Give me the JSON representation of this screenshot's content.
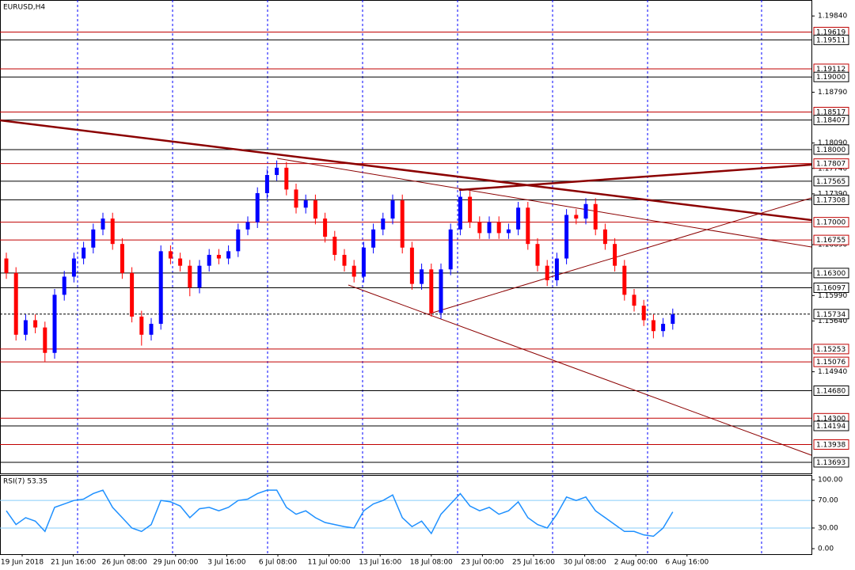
{
  "chart_data": {
    "type": "candlestick",
    "title": "EURUSD,H4",
    "ylim": [
      1.1354,
      1.2006
    ],
    "yticks": [
      {
        "value": 1.1984,
        "label": "1.19840"
      },
      {
        "value": 1.1879,
        "label": "1.18790"
      },
      {
        "value": 1.1809,
        "label": "1.18090"
      },
      {
        "value": 1.1774,
        "label": "1.17740"
      },
      {
        "value": 1.1739,
        "label": "1.17390"
      },
      {
        "value": 1.1669,
        "label": "1.16690"
      },
      {
        "value": 1.1599,
        "label": "1.15990"
      },
      {
        "value": 1.1564,
        "label": "1.15640"
      },
      {
        "value": 1.1494,
        "label": "1.14940"
      }
    ],
    "up_color": "#0000ff",
    "down_color": "#ff0000",
    "levels": [
      {
        "value": 1.19619,
        "label": "1.19619",
        "color": "#c00000"
      },
      {
        "value": 1.19511,
        "label": "1.19511",
        "color": "#000000"
      },
      {
        "value": 1.19112,
        "label": "1.19112",
        "color": "#c00000"
      },
      {
        "value": 1.19,
        "label": "1.19000",
        "color": "#000000"
      },
      {
        "value": 1.18517,
        "label": "1.18517",
        "color": "#c00000"
      },
      {
        "value": 1.18407,
        "label": "1.18407",
        "color": "#000000"
      },
      {
        "value": 1.18,
        "label": "1.18000",
        "color": "#000000"
      },
      {
        "value": 1.17807,
        "label": "1.17807",
        "color": "#c00000"
      },
      {
        "value": 1.17565,
        "label": "1.17565",
        "color": "#000000"
      },
      {
        "value": 1.17308,
        "label": "1.17308",
        "color": "#000000"
      },
      {
        "value": 1.17,
        "label": "1.17000",
        "color": "#c00000"
      },
      {
        "value": 1.16755,
        "label": "1.16755",
        "color": "#c00000"
      },
      {
        "value": 1.163,
        "label": "1.16300",
        "color": "#000000"
      },
      {
        "value": 1.16097,
        "label": "1.16097",
        "color": "#000000"
      },
      {
        "value": 1.15253,
        "label": "1.15253",
        "color": "#c00000"
      },
      {
        "value": 1.15076,
        "label": "1.15076",
        "color": "#c00000"
      },
      {
        "value": 1.1468,
        "label": "1.14680",
        "color": "#000000"
      },
      {
        "value": 1.143,
        "label": "1.14300",
        "color": "#c00000"
      },
      {
        "value": 1.14194,
        "label": "1.14194",
        "color": "#000000"
      },
      {
        "value": 1.13938,
        "label": "1.13938",
        "color": "#c00000"
      },
      {
        "value": 1.13693,
        "label": "1.13693",
        "color": "#000000"
      }
    ],
    "current_price": {
      "value": 1.15734,
      "label": "1.15734"
    },
    "candles": [
      [
        1.165,
        1.1658,
        1.1622,
        1.163
      ],
      [
        1.163,
        1.1638,
        1.1537,
        1.1545
      ],
      [
        1.1545,
        1.1573,
        1.1537,
        1.1565
      ],
      [
        1.1565,
        1.1573,
        1.1547,
        1.1555
      ],
      [
        1.1555,
        1.1563,
        1.1508,
        1.152
      ],
      [
        1.152,
        1.1608,
        1.1512,
        1.16
      ],
      [
        1.16,
        1.1633,
        1.1592,
        1.1625
      ],
      [
        1.1625,
        1.1658,
        1.1617,
        1.165
      ],
      [
        1.165,
        1.1673,
        1.1642,
        1.1665
      ],
      [
        1.1665,
        1.1698,
        1.1657,
        1.169
      ],
      [
        1.169,
        1.1713,
        1.1682,
        1.1705
      ],
      [
        1.1705,
        1.1713,
        1.1662,
        1.167
      ],
      [
        1.167,
        1.1678,
        1.1622,
        1.163
      ],
      [
        1.163,
        1.1638,
        1.1562,
        1.157
      ],
      [
        1.157,
        1.1578,
        1.153,
        1.1545
      ],
      [
        1.1545,
        1.1568,
        1.1537,
        1.156
      ],
      [
        1.156,
        1.1668,
        1.1552,
        1.166
      ],
      [
        1.166,
        1.1668,
        1.1642,
        1.165
      ],
      [
        1.165,
        1.1658,
        1.1632,
        1.164
      ],
      [
        1.164,
        1.1648,
        1.1598,
        1.161
      ],
      [
        1.161,
        1.1648,
        1.1602,
        1.164
      ],
      [
        1.164,
        1.1663,
        1.1632,
        1.1655
      ],
      [
        1.1655,
        1.1663,
        1.1642,
        1.165
      ],
      [
        1.165,
        1.1668,
        1.1642,
        1.166
      ],
      [
        1.166,
        1.1698,
        1.1652,
        1.169
      ],
      [
        1.169,
        1.1708,
        1.1682,
        1.17
      ],
      [
        1.17,
        1.1748,
        1.1692,
        1.174
      ],
      [
        1.174,
        1.1773,
        1.1732,
        1.1765
      ],
      [
        1.1765,
        1.1785,
        1.1757,
        1.1775
      ],
      [
        1.1775,
        1.1783,
        1.1737,
        1.1745
      ],
      [
        1.1745,
        1.1753,
        1.1712,
        1.172
      ],
      [
        1.172,
        1.1738,
        1.1712,
        1.173
      ],
      [
        1.173,
        1.1738,
        1.1697,
        1.1705
      ],
      [
        1.1705,
        1.1713,
        1.1672,
        1.168
      ],
      [
        1.168,
        1.1688,
        1.1647,
        1.1655
      ],
      [
        1.1655,
        1.1663,
        1.1632,
        1.164
      ],
      [
        1.164,
        1.1648,
        1.1617,
        1.1625
      ],
      [
        1.1625,
        1.1673,
        1.1617,
        1.1665
      ],
      [
        1.1665,
        1.1698,
        1.1657,
        1.169
      ],
      [
        1.169,
        1.1713,
        1.1682,
        1.1705
      ],
      [
        1.1705,
        1.1738,
        1.1697,
        1.173
      ],
      [
        1.173,
        1.1738,
        1.1657,
        1.1665
      ],
      [
        1.1665,
        1.1673,
        1.1607,
        1.1615
      ],
      [
        1.1615,
        1.1643,
        1.1607,
        1.1635
      ],
      [
        1.1635,
        1.1643,
        1.157,
        1.1575
      ],
      [
        1.1575,
        1.1643,
        1.1567,
        1.1635
      ],
      [
        1.1635,
        1.1698,
        1.1627,
        1.169
      ],
      [
        1.169,
        1.1743,
        1.1682,
        1.1735
      ],
      [
        1.1735,
        1.1743,
        1.1692,
        1.17
      ],
      [
        1.17,
        1.1708,
        1.1677,
        1.1685
      ],
      [
        1.1685,
        1.1708,
        1.1677,
        1.17
      ],
      [
        1.17,
        1.1708,
        1.1677,
        1.1685
      ],
      [
        1.1685,
        1.1698,
        1.1677,
        1.169
      ],
      [
        1.169,
        1.1728,
        1.1682,
        1.172
      ],
      [
        1.172,
        1.1728,
        1.1662,
        1.167
      ],
      [
        1.167,
        1.1678,
        1.1632,
        1.164
      ],
      [
        1.164,
        1.1648,
        1.1612,
        1.162
      ],
      [
        1.162,
        1.1658,
        1.1612,
        1.165
      ],
      [
        1.165,
        1.1718,
        1.1642,
        1.171
      ],
      [
        1.171,
        1.1718,
        1.1697,
        1.1705
      ],
      [
        1.1705,
        1.1733,
        1.1697,
        1.1725
      ],
      [
        1.1725,
        1.1733,
        1.1682,
        1.169
      ],
      [
        1.169,
        1.1698,
        1.1662,
        1.167
      ],
      [
        1.167,
        1.1678,
        1.1632,
        1.164
      ],
      [
        1.164,
        1.1648,
        1.1592,
        1.16
      ],
      [
        1.16,
        1.1608,
        1.1577,
        1.1585
      ],
      [
        1.1585,
        1.1593,
        1.1557,
        1.1565
      ],
      [
        1.1565,
        1.1573,
        1.154,
        1.155
      ],
      [
        1.155,
        1.1568,
        1.1542,
        1.156
      ],
      [
        1.156,
        1.1581,
        1.1552,
        1.1573
      ]
    ],
    "rsi": {
      "label": "RSI(7) 53.35",
      "color": "#1e90ff",
      "ylim": [
        -8,
        107
      ],
      "yticks": [
        {
          "value": 100,
          "label": "100.00"
        },
        {
          "value": 70,
          "label": "70.00"
        },
        {
          "value": 30,
          "label": "30.00"
        },
        {
          "value": 0,
          "label": "0.00"
        }
      ],
      "values": [
        55,
        35,
        45,
        40,
        25,
        60,
        65,
        70,
        72,
        80,
        85,
        60,
        45,
        30,
        25,
        35,
        70,
        68,
        62,
        45,
        58,
        60,
        55,
        60,
        70,
        72,
        80,
        85,
        85,
        60,
        50,
        55,
        45,
        38,
        35,
        32,
        30,
        55,
        65,
        70,
        78,
        45,
        32,
        40,
        22,
        50,
        65,
        80,
        62,
        55,
        60,
        50,
        55,
        68,
        45,
        35,
        30,
        50,
        75,
        70,
        75,
        55,
        45,
        35,
        25,
        25,
        20,
        18,
        30,
        53.35
      ]
    },
    "xlabels": [
      "19 Jun 2018",
      "21 Jun 16:00",
      "26 Jun 08:00",
      "29 Jun 00:00",
      "3 Jul 16:00",
      "6 Jul 08:00",
      "11 Jul 00:00",
      "13 Jul 16:00",
      "18 Jul 08:00",
      "23 Jul 00:00",
      "25 Jul 16:00",
      "30 Jul 08:00",
      "2 Aug 00:00",
      "6 Aug 16:00"
    ]
  }
}
